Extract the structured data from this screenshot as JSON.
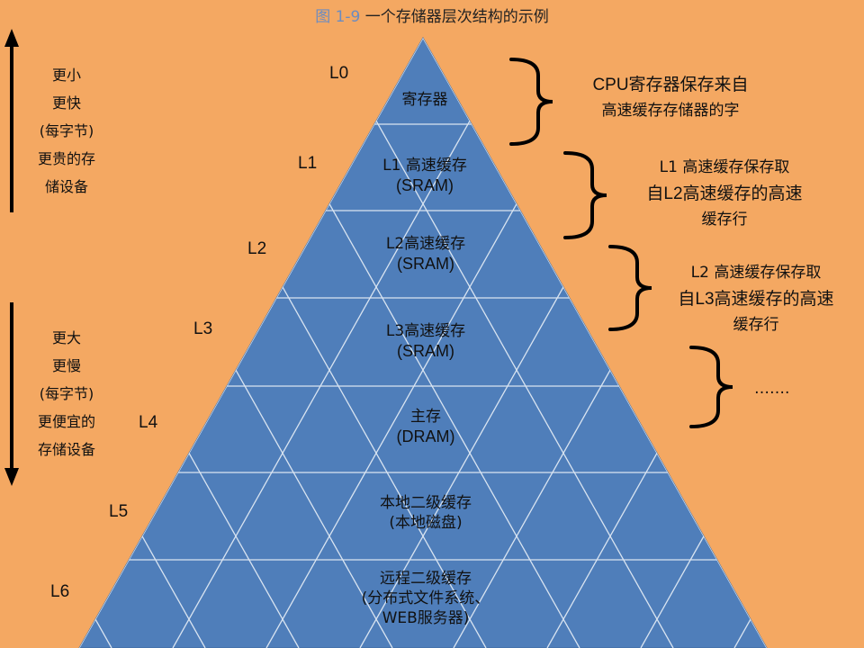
{
  "title": {
    "figure": "图 1-9",
    "caption": "一个存储器层次结构的示例"
  },
  "levels": [
    "L0",
    "L1",
    "L2",
    "L3",
    "L4",
    "L5",
    "L6"
  ],
  "cells": {
    "l0": {
      "line1": "寄存器"
    },
    "l1": {
      "line1": "L1 高速缓存",
      "line2": "(SRAM)"
    },
    "l2": {
      "line1": "L2高速缓存",
      "line2": "(SRAM)"
    },
    "l3": {
      "line1": "L3高速缓存",
      "line2": "(SRAM)"
    },
    "l4": {
      "line1": "主存",
      "line2": "(DRAM)"
    },
    "l5": {
      "line1": "本地二级缓存",
      "line2": "(本地磁盘)"
    },
    "l6": {
      "line1": "远程二级缓存",
      "line2": "(分布式文件系统、",
      "line3": "WEB服务器)"
    }
  },
  "left_top": {
    "lines": [
      "更小",
      "更快",
      "(每字节)",
      "更贵的存",
      "储设备"
    ]
  },
  "left_bottom": {
    "lines": [
      "更大",
      "更慢",
      "(每字节)",
      "更便宜的",
      "存储设备"
    ]
  },
  "notes": {
    "n0": {
      "line1": "CPU寄存器保存来自",
      "line2": "高速缓存存储器的字"
    },
    "n1": {
      "line1": "L1 高速缓存保存取",
      "line2": "自L2高速缓存的高速",
      "line3": "缓存行"
    },
    "n2": {
      "line1": "L2 高速缓存保存取",
      "line2": "自L3高速缓存的高速",
      "line3": "缓存行"
    },
    "n3": {
      "line1": "……."
    }
  },
  "colors": {
    "background": "#F4A862",
    "pyramid_fill": "#4F7EBA",
    "grid_line": "#D9E4F1",
    "bracket": "#000000"
  }
}
